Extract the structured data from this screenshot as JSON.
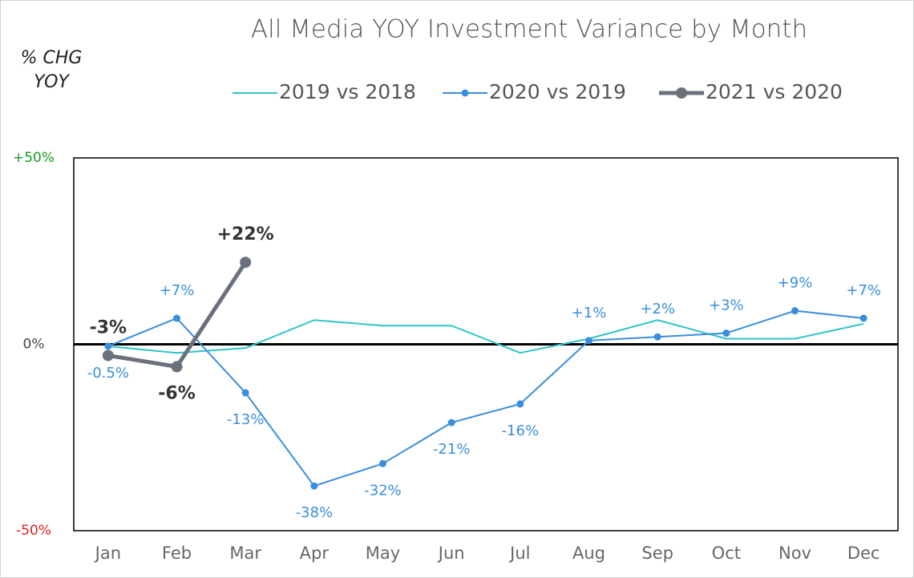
{
  "chart_data": {
    "type": "line",
    "title": "All Media YOY Investment Variance by Month",
    "ylabel": "% CHG YOY",
    "categories": [
      "Jan",
      "Feb",
      "Mar",
      "Apr",
      "May",
      "Jun",
      "Jul",
      "Aug",
      "Sep",
      "Oct",
      "Nov",
      "Dec"
    ],
    "series": [
      {
        "name": "2019 vs 2018",
        "color": "#2fc4c8",
        "values": [
          -0.5,
          -2.3,
          -1,
          6.5,
          5,
          5,
          -2.3,
          1.5,
          6.5,
          1.5,
          1.5,
          5.5
        ]
      },
      {
        "name": "2020 vs 2019",
        "color": "#3a8edb",
        "values": [
          -0.5,
          7,
          -13,
          -38,
          -32,
          -21,
          -16,
          1,
          2,
          3,
          9,
          7
        ],
        "value_labels": [
          "-0.5%",
          "+7%",
          "-13%",
          "-38%",
          "-32%",
          "-21%",
          "-16%",
          "+1%",
          "+2%",
          "+3%",
          "+9%",
          "+7%"
        ]
      },
      {
        "name": "2021 vs 2020",
        "color": "#6b717c",
        "values": [
          -3,
          -6,
          22,
          null,
          null,
          null,
          null,
          null,
          null,
          null,
          null,
          null
        ],
        "value_labels": [
          "-3%",
          "-6%",
          "+22%",
          null,
          null,
          null,
          null,
          null,
          null,
          null,
          null,
          null
        ]
      }
    ],
    "ylim": [
      -50,
      50
    ],
    "yticks": [
      {
        "value": -50,
        "label": "-50%"
      },
      {
        "value": 0,
        "label": "0%"
      },
      {
        "value": 50,
        "label": "+50%"
      }
    ],
    "grid": false
  }
}
